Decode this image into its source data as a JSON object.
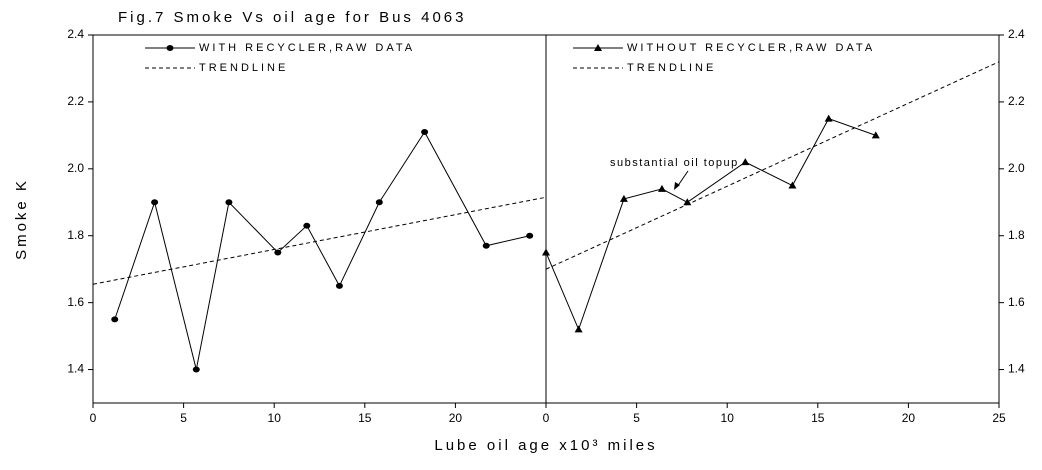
{
  "chart_data": [
    {
      "type": "line",
      "title": "Fig.7 Smoke Vs oil age for Bus 4063",
      "ylabel": "Smoke K",
      "xlabel": "Lube oil age x10³ miles",
      "xlim": [
        0,
        25
      ],
      "xticks": [
        0,
        5,
        10,
        15,
        20
      ],
      "ylim": [
        1.3,
        2.4
      ],
      "yticks": [
        1.4,
        1.6,
        1.8,
        {
          "value": 2,
          "label": "2.0"
        },
        2.2,
        2.4
      ],
      "yaxis_side": "left",
      "series": [
        {
          "name": "WITH RECYCLER,RAW DATA",
          "color": "#000000",
          "marker": "circle",
          "dash": false,
          "x": [
            1.2,
            3.4,
            5.7,
            7.5,
            10.2,
            11.8,
            13.6,
            15.8,
            18.3,
            21.7,
            24.1
          ],
          "values": [
            1.55,
            1.9,
            1.4,
            1.9,
            1.75,
            1.83,
            1.65,
            1.9,
            2.11,
            1.77,
            1.8
          ]
        },
        {
          "name": "TRENDLINE",
          "color": "#000000",
          "marker": "none",
          "dash": true,
          "x": [
            0,
            25
          ],
          "values": [
            1.655,
            1.915
          ]
        }
      ]
    },
    {
      "type": "line",
      "annotation": "substantial oil topup",
      "xlim": [
        0,
        25
      ],
      "xticks": [
        0,
        5,
        10,
        15,
        20,
        25
      ],
      "ylim": [
        1.3,
        2.4
      ],
      "yticks": [
        1.4,
        1.6,
        1.8,
        {
          "value": 2,
          "label": "2.0"
        },
        2.2,
        2.4
      ],
      "yaxis_side": "right",
      "series": [
        {
          "name": "WITHOUT RECYCLER,RAW DATA",
          "color": "#000000",
          "marker": "triangle",
          "dash": false,
          "x": [
            0,
            1.8,
            4.3,
            6.4,
            7.8,
            11.0,
            13.6,
            15.6,
            18.2
          ],
          "values": [
            1.75,
            1.52,
            1.91,
            1.94,
            1.9,
            2.02,
            1.95,
            2.15,
            2.1
          ]
        },
        {
          "name": "TRENDLINE",
          "color": "#000000",
          "marker": "none",
          "dash": true,
          "x": [
            0,
            25
          ],
          "values": [
            1.7,
            2.32
          ]
        }
      ]
    }
  ]
}
